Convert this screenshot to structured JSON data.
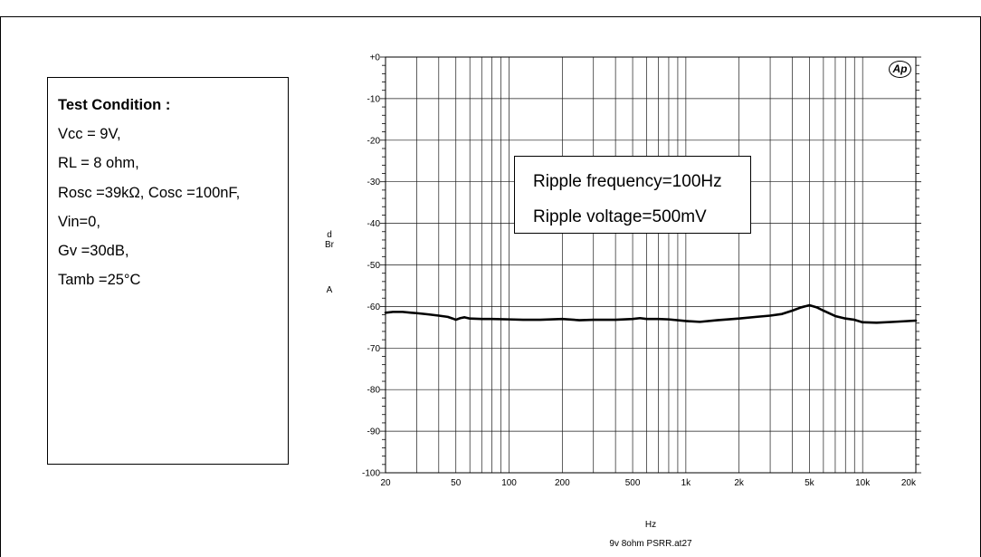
{
  "test_conditions": {
    "title": "Test Condition :",
    "lines": [
      "Vcc = 9V,",
      "RL = 8 ohm,",
      "Rosc =39kΩ, Cosc =100nF,",
      "Vin=0,",
      "Gv =30dB,",
      "Tamb =25°C"
    ]
  },
  "annotation": {
    "line1": "Ripple frequency=100Hz",
    "line2": "Ripple voltage=500mV"
  },
  "logo": {
    "text": "Ap"
  },
  "chart_data": {
    "type": "line",
    "xscale": "log",
    "xlim": [
      20,
      20000
    ],
    "ylim": [
      -100,
      0
    ],
    "xticks": [
      20,
      50,
      100,
      200,
      500,
      1000,
      2000,
      5000,
      10000,
      20000
    ],
    "xtick_labels": [
      "20",
      "50",
      "100",
      "200",
      "500",
      "1k",
      "2k",
      "5k",
      "10k",
      "20k"
    ],
    "yticks": [
      0,
      -10,
      -20,
      -30,
      -40,
      -50,
      -60,
      -70,
      -80,
      -90,
      -100
    ],
    "ytick_labels": [
      "+0",
      "-10",
      "-20",
      "-30",
      "-40",
      "-50",
      "-60",
      "-70",
      "-80",
      "-90",
      "-100"
    ],
    "xlabel": "Hz",
    "ylabel": "dBr",
    "ylabel_suffix": "A",
    "footnote": "9v 8ohm PSRR.at27",
    "grid": true,
    "line_color": "#000000",
    "x": [
      20,
      22,
      25,
      28,
      30,
      35,
      40,
      45,
      48,
      50,
      53,
      56,
      60,
      70,
      80,
      100,
      120,
      150,
      200,
      250,
      300,
      400,
      500,
      550,
      600,
      700,
      800,
      1000,
      1200,
      1500,
      2000,
      2500,
      3000,
      3500,
      4000,
      4500,
      5000,
      5500,
      6000,
      7000,
      8000,
      9000,
      10000,
      12000,
      15000,
      20000
    ],
    "y": [
      -61.5,
      -61.3,
      -61.3,
      -61.5,
      -61.6,
      -61.9,
      -62.2,
      -62.5,
      -62.9,
      -63.2,
      -62.8,
      -62.6,
      -62.9,
      -63.0,
      -63.0,
      -63.1,
      -63.2,
      -63.2,
      -63.0,
      -63.3,
      -63.2,
      -63.2,
      -63.0,
      -62.8,
      -63.0,
      -63.0,
      -63.1,
      -63.5,
      -63.7,
      -63.3,
      -62.9,
      -62.5,
      -62.2,
      -61.8,
      -61.0,
      -60.2,
      -59.7,
      -60.2,
      -61.0,
      -62.3,
      -62.9,
      -63.2,
      -63.8,
      -63.9,
      -63.7,
      -63.4
    ]
  }
}
